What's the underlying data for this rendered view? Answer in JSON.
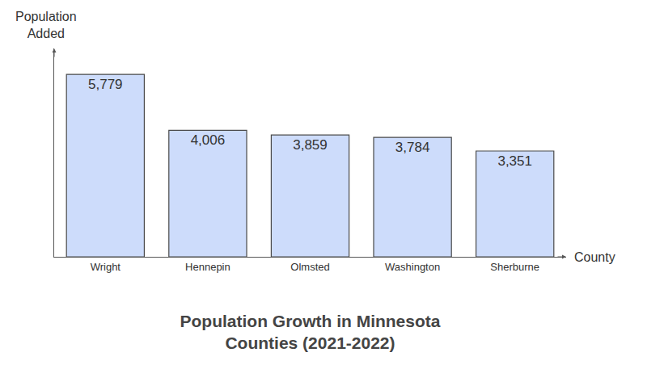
{
  "chart_data": {
    "type": "bar",
    "title": "Population Growth in Minnesota\nCounties (2021-2022)",
    "x_label": "County",
    "y_label": "Population\nAdded",
    "categories": [
      "Wright",
      "Hennepin",
      "Olmsted",
      "Washington",
      "Sherburne"
    ],
    "values": [
      5779,
      4006,
      3859,
      3784,
      3351
    ],
    "value_labels": [
      "5,779",
      "4,006",
      "3,859",
      "3,784",
      "3,351"
    ],
    "color": "#cddcfb",
    "ylim": [
      0,
      6600
    ],
    "grid": false,
    "data_labels": true,
    "tick_labels": "x"
  }
}
